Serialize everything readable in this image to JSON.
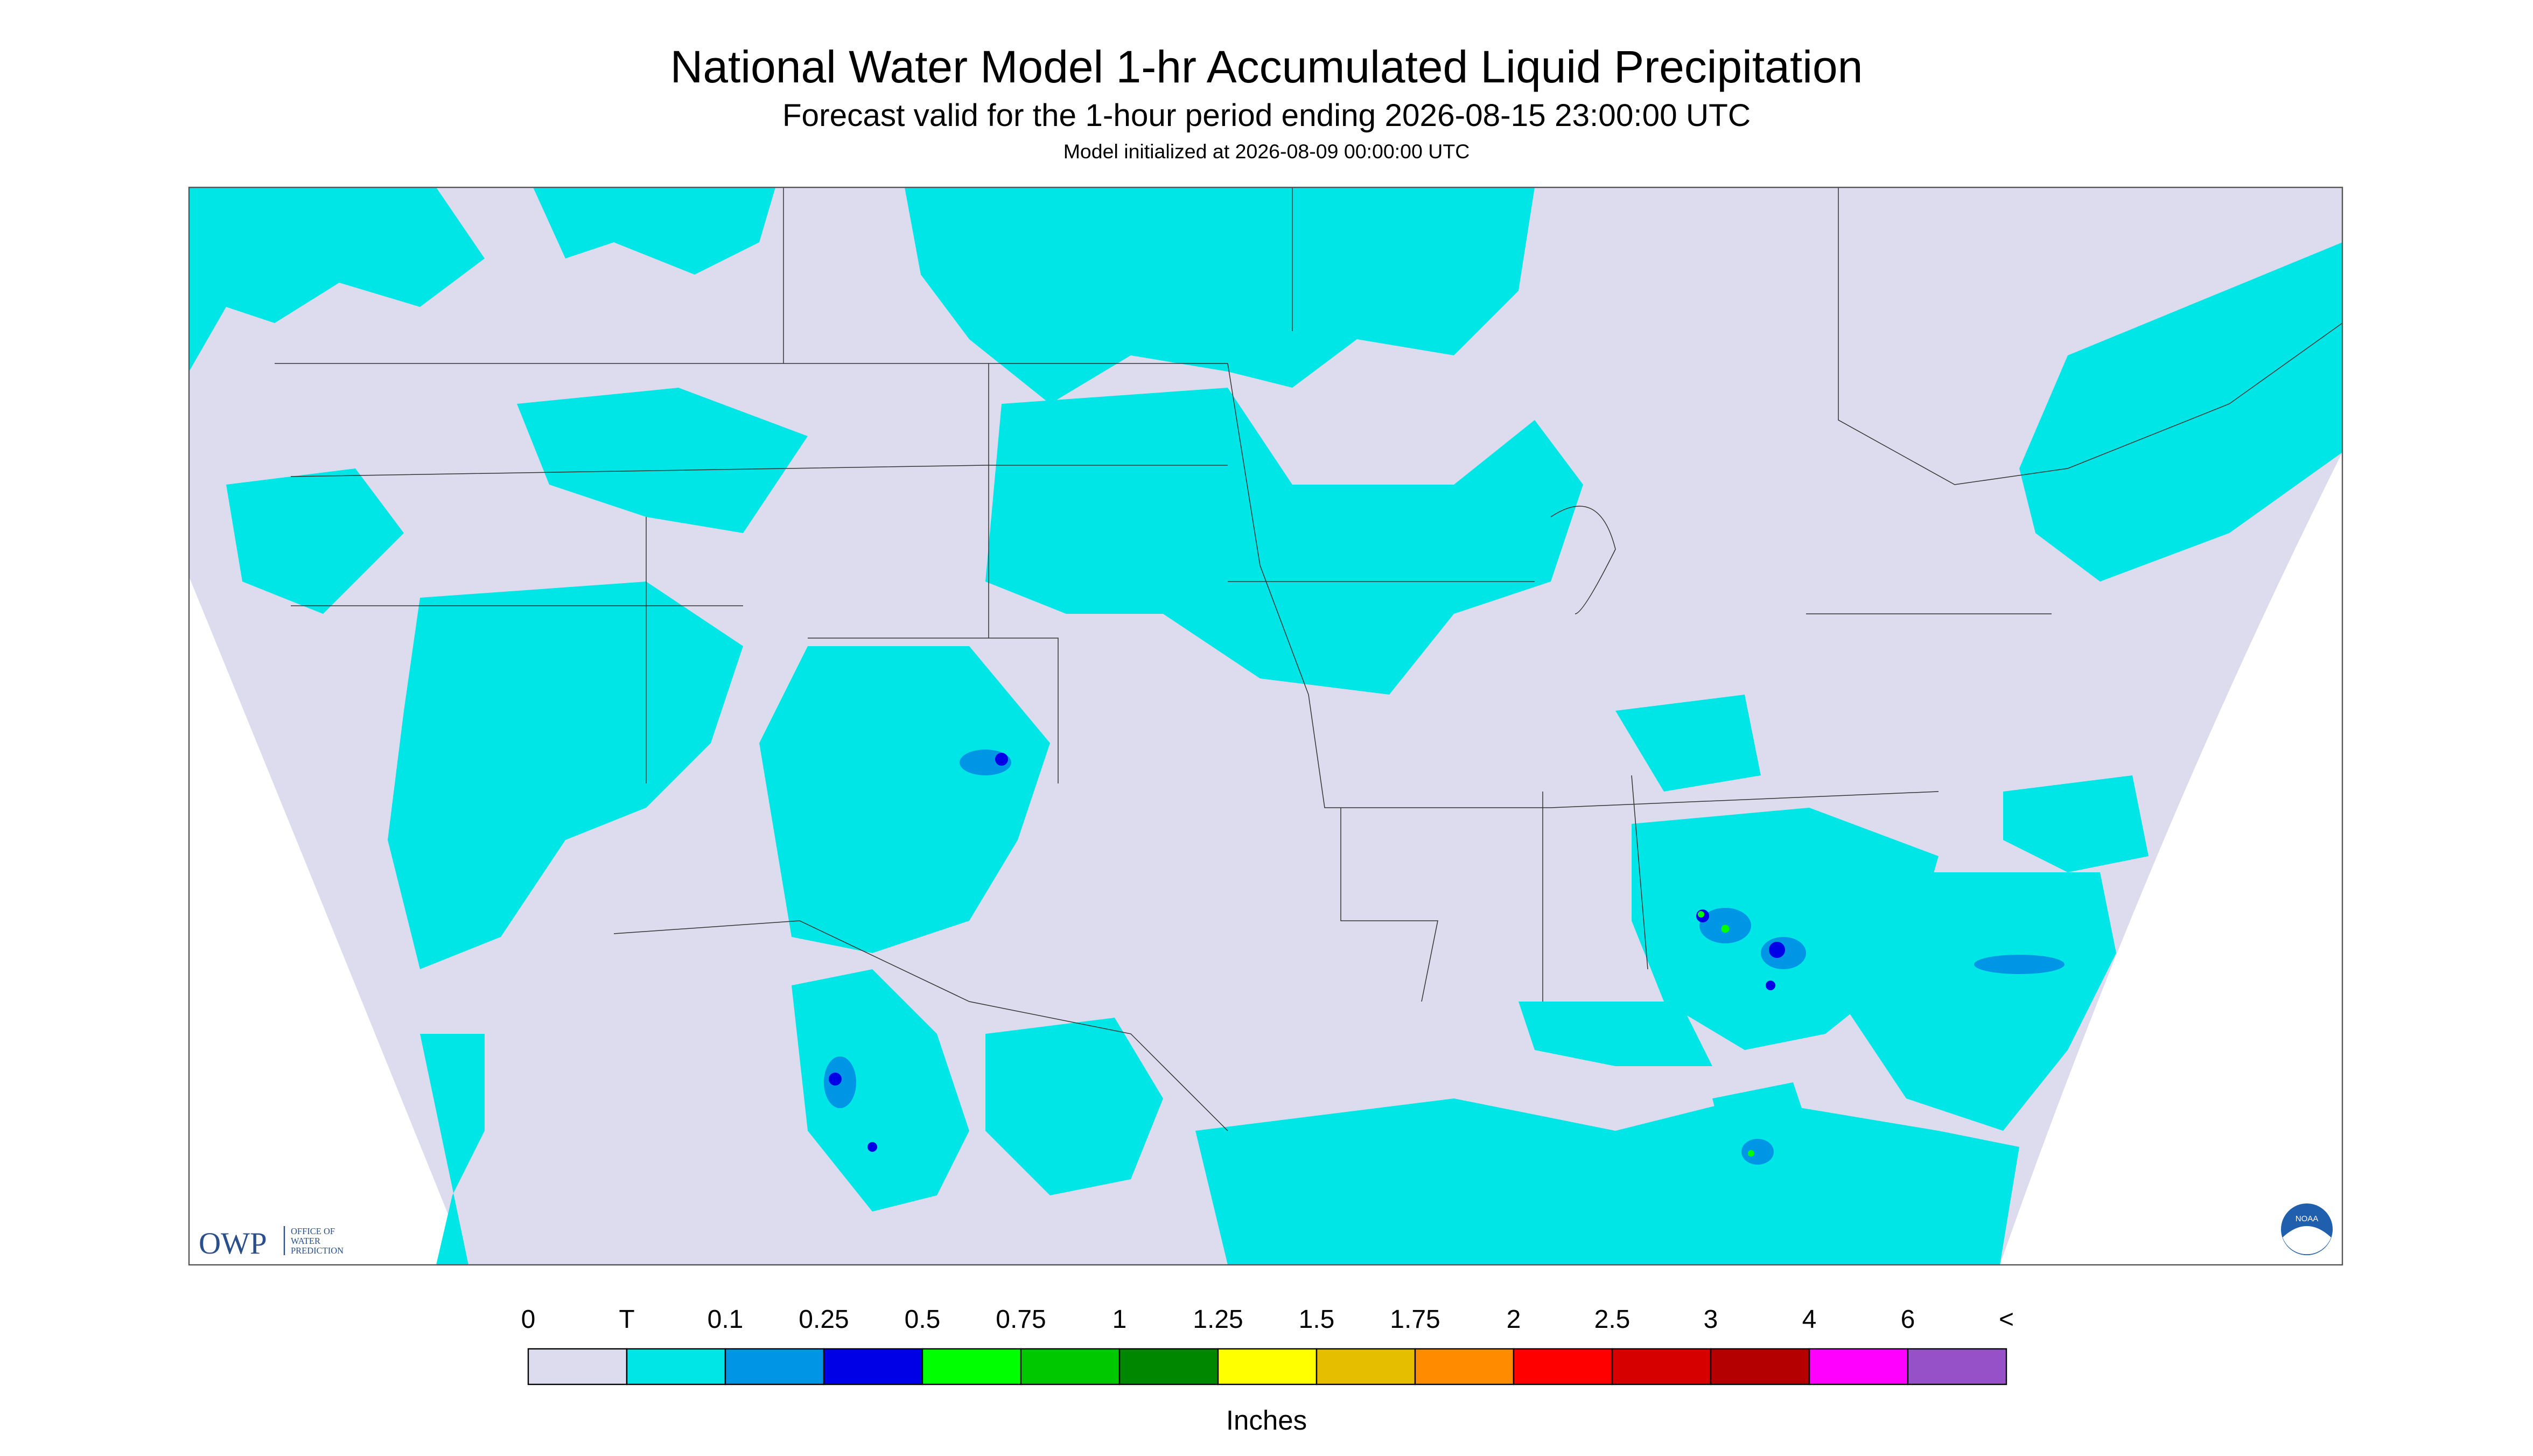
{
  "header": {
    "title": "National Water Model 1-hr Accumulated Liquid Precipitation",
    "subtitle": "Forecast valid for the 1-hour period ending 2026-08-15 23:00:00 UTC",
    "initialized": "Model initialized at 2026-08-09 00:00:00 UTC"
  },
  "legend": {
    "labels": [
      "0",
      "T",
      "0.1",
      "0.25",
      "0.5",
      "0.75",
      "1",
      "1.25",
      "1.5",
      "1.75",
      "2",
      "2.5",
      "3",
      "4",
      "6",
      "<"
    ],
    "colors": [
      "#dcdcee",
      "#00e5e5",
      "#0096e6",
      "#0000e6",
      "#00ff00",
      "#00c800",
      "#008700",
      "#ffff00",
      "#e6be00",
      "#ff8c00",
      "#ff0000",
      "#d70000",
      "#b40000",
      "#ff00ff",
      "#9650c8"
    ],
    "unit": "Inches"
  },
  "logos": {
    "owp": "OWP",
    "owp_line1": "OFFICE OF",
    "owp_line2": "WATER",
    "owp_line3": "PREDICTION",
    "noaa": "NOAA"
  }
}
